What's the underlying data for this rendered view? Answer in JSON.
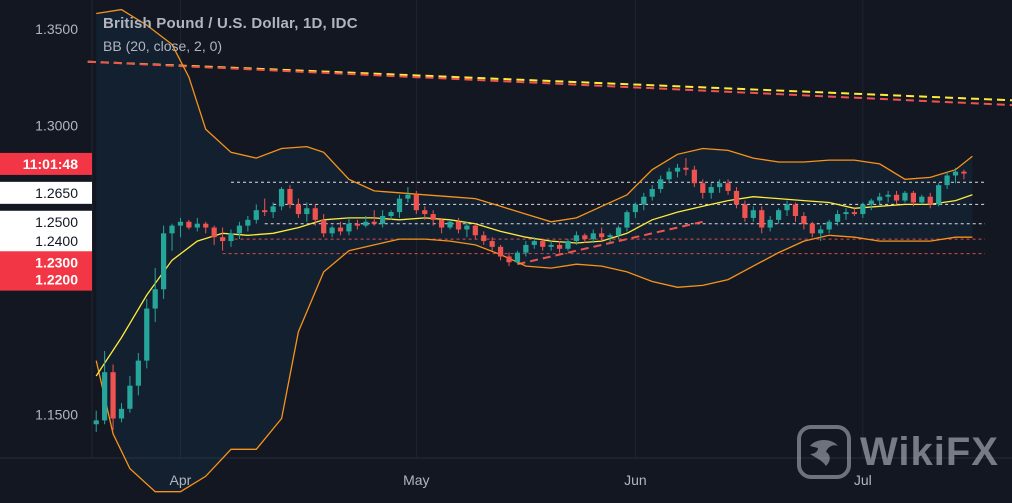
{
  "header": {
    "title": "British Pound / U.S. Dollar, 1D, IDC",
    "indicator": "BB (20, close, 2, 0)"
  },
  "watermark": {
    "text": "WikiFX"
  },
  "colors": {
    "background": "#131722",
    "up": "#26a69a",
    "down": "#ef5350",
    "bb_band": "#f7931a",
    "bb_basis": "#ffeb3b",
    "label_red": "#f23645",
    "grid": "#1f2430"
  },
  "chart_data": {
    "type": "candlestick",
    "y_axis": {
      "range": [
        1.1275,
        1.365
      ],
      "ticks": [
        "1.3500",
        "1.3000",
        "1.2650",
        "1.2500",
        "1.2400",
        "1.2300",
        "1.2200",
        "1.1500"
      ],
      "price_labels": [
        {
          "text": "11:01:48",
          "value": 1.28,
          "style": "red"
        },
        {
          "text": "1.2650",
          "value": 1.265,
          "style": "white"
        },
        {
          "text": "1.2500",
          "value": 1.25,
          "style": "white"
        },
        {
          "text": "1.2400",
          "value": 1.24,
          "style": "white"
        },
        {
          "text": "1.2300",
          "value": 1.229,
          "style": "red"
        },
        {
          "text": "1.2200",
          "value": 1.22,
          "style": "red"
        }
      ],
      "plain_ticks": [
        {
          "text": "1.3500",
          "value": 1.35
        },
        {
          "text": "1.3000",
          "value": 1.3
        },
        {
          "text": "1.1500",
          "value": 1.15
        }
      ]
    },
    "x_axis": {
      "labels": [
        {
          "text": "Apr",
          "index": 10
        },
        {
          "text": "May",
          "index": 38
        },
        {
          "text": "Jun",
          "index": 64
        },
        {
          "text": "Jul",
          "index": 91
        }
      ]
    },
    "candles": [
      [
        1.145,
        1.152,
        1.141,
        1.147
      ],
      [
        1.147,
        1.183,
        1.145,
        1.172
      ],
      [
        1.172,
        1.176,
        1.142,
        1.148
      ],
      [
        1.148,
        1.156,
        1.146,
        1.153
      ],
      [
        1.153,
        1.17,
        1.151,
        1.165
      ],
      [
        1.165,
        1.182,
        1.16,
        1.178
      ],
      [
        1.178,
        1.21,
        1.174,
        1.205
      ],
      [
        1.205,
        1.226,
        1.198,
        1.215
      ],
      [
        1.215,
        1.248,
        1.21,
        1.244
      ],
      [
        1.244,
        1.249,
        1.235,
        1.248
      ],
      [
        1.248,
        1.252,
        1.242,
        1.25
      ],
      [
        1.25,
        1.251,
        1.246,
        1.247
      ],
      [
        1.247,
        1.252,
        1.245,
        1.249
      ],
      [
        1.249,
        1.25,
        1.244,
        1.247
      ],
      [
        1.247,
        1.248,
        1.238,
        1.242
      ],
      [
        1.242,
        1.247,
        1.235,
        1.24
      ],
      [
        1.24,
        1.246,
        1.237,
        1.244
      ],
      [
        1.244,
        1.25,
        1.241,
        1.248
      ],
      [
        1.248,
        1.253,
        1.245,
        1.251
      ],
      [
        1.251,
        1.259,
        1.249,
        1.256
      ],
      [
        1.256,
        1.262,
        1.253,
        1.255
      ],
      [
        1.255,
        1.26,
        1.252,
        1.258
      ],
      [
        1.258,
        1.268,
        1.256,
        1.267
      ],
      [
        1.267,
        1.269,
        1.257,
        1.259
      ],
      [
        1.259,
        1.262,
        1.252,
        1.254
      ],
      [
        1.254,
        1.26,
        1.25,
        1.257
      ],
      [
        1.257,
        1.259,
        1.248,
        1.251
      ],
      [
        1.251,
        1.254,
        1.242,
        1.244
      ],
      [
        1.244,
        1.248,
        1.242,
        1.247
      ],
      [
        1.247,
        1.25,
        1.243,
        1.245
      ],
      [
        1.245,
        1.252,
        1.243,
        1.249
      ],
      [
        1.249,
        1.251,
        1.246,
        1.248
      ],
      [
        1.248,
        1.253,
        1.247,
        1.25
      ],
      [
        1.25,
        1.256,
        1.248,
        1.249
      ],
      [
        1.249,
        1.256,
        1.247,
        1.253
      ],
      [
        1.253,
        1.256,
        1.251,
        1.255
      ],
      [
        1.255,
        1.264,
        1.252,
        1.262
      ],
      [
        1.262,
        1.268,
        1.26,
        1.264
      ],
      [
        1.264,
        1.266,
        1.254,
        1.256
      ],
      [
        1.256,
        1.258,
        1.251,
        1.254
      ],
      [
        1.254,
        1.256,
        1.248,
        1.251
      ],
      [
        1.251,
        1.252,
        1.244,
        1.247
      ],
      [
        1.247,
        1.251,
        1.246,
        1.25
      ],
      [
        1.25,
        1.252,
        1.244,
        1.246
      ],
      [
        1.246,
        1.25,
        1.242,
        1.248
      ],
      [
        1.248,
        1.249,
        1.241,
        1.243
      ],
      [
        1.243,
        1.245,
        1.238,
        1.24
      ],
      [
        1.24,
        1.242,
        1.235,
        1.237
      ],
      [
        1.237,
        1.238,
        1.23,
        1.232
      ],
      [
        1.232,
        1.234,
        1.227,
        1.229
      ],
      [
        1.229,
        1.235,
        1.228,
        1.234
      ],
      [
        1.234,
        1.24,
        1.232,
        1.238
      ],
      [
        1.238,
        1.242,
        1.236,
        1.24
      ],
      [
        1.24,
        1.241,
        1.235,
        1.237
      ],
      [
        1.237,
        1.24,
        1.235,
        1.238
      ],
      [
        1.238,
        1.24,
        1.234,
        1.236
      ],
      [
        1.236,
        1.241,
        1.235,
        1.24
      ],
      [
        1.24,
        1.245,
        1.238,
        1.243
      ],
      [
        1.243,
        1.244,
        1.239,
        1.241
      ],
      [
        1.241,
        1.246,
        1.239,
        1.244
      ],
      [
        1.244,
        1.247,
        1.24,
        1.242
      ],
      [
        1.242,
        1.244,
        1.239,
        1.243
      ],
      [
        1.243,
        1.248,
        1.241,
        1.247
      ],
      [
        1.247,
        1.256,
        1.245,
        1.255
      ],
      [
        1.255,
        1.26,
        1.252,
        1.259
      ],
      [
        1.259,
        1.265,
        1.256,
        1.263
      ],
      [
        1.263,
        1.269,
        1.261,
        1.267
      ],
      [
        1.267,
        1.274,
        1.265,
        1.272
      ],
      [
        1.272,
        1.278,
        1.27,
        1.276
      ],
      [
        1.276,
        1.28,
        1.273,
        1.278
      ],
      [
        1.278,
        1.283,
        1.274,
        1.277
      ],
      [
        1.277,
        1.279,
        1.268,
        1.27
      ],
      [
        1.27,
        1.272,
        1.262,
        1.265
      ],
      [
        1.265,
        1.27,
        1.262,
        1.268
      ],
      [
        1.268,
        1.272,
        1.265,
        1.27
      ],
      [
        1.27,
        1.272,
        1.264,
        1.266
      ],
      [
        1.266,
        1.268,
        1.257,
        1.259
      ],
      [
        1.259,
        1.261,
        1.25,
        1.252
      ],
      [
        1.252,
        1.258,
        1.25,
        1.256
      ],
      [
        1.256,
        1.258,
        1.244,
        1.247
      ],
      [
        1.247,
        1.253,
        1.245,
        1.251
      ],
      [
        1.251,
        1.257,
        1.249,
        1.256
      ],
      [
        1.256,
        1.261,
        1.253,
        1.259
      ],
      [
        1.259,
        1.26,
        1.25,
        1.253
      ],
      [
        1.253,
        1.255,
        1.246,
        1.249
      ],
      [
        1.249,
        1.25,
        1.242,
        1.244
      ],
      [
        1.244,
        1.248,
        1.24,
        1.246
      ],
      [
        1.246,
        1.251,
        1.244,
        1.25
      ],
      [
        1.25,
        1.256,
        1.248,
        1.254
      ],
      [
        1.254,
        1.257,
        1.251,
        1.255
      ],
      [
        1.255,
        1.257,
        1.253,
        1.254
      ],
      [
        1.254,
        1.26,
        1.252,
        1.259
      ],
      [
        1.259,
        1.262,
        1.256,
        1.261
      ],
      [
        1.261,
        1.265,
        1.259,
        1.263
      ],
      [
        1.263,
        1.266,
        1.26,
        1.264
      ],
      [
        1.264,
        1.266,
        1.259,
        1.261
      ],
      [
        1.261,
        1.266,
        1.26,
        1.265
      ],
      [
        1.265,
        1.266,
        1.258,
        1.26
      ],
      [
        1.26,
        1.264,
        1.259,
        1.263
      ],
      [
        1.263,
        1.265,
        1.257,
        1.259
      ],
      [
        1.259,
        1.27,
        1.258,
        1.269
      ],
      [
        1.269,
        1.276,
        1.267,
        1.274
      ],
      [
        1.274,
        1.278,
        1.27,
        1.276
      ],
      [
        1.276,
        1.277,
        1.272,
        1.275
      ]
    ],
    "bollinger": {
      "upper": [
        [
          0,
          1.358
        ],
        [
          3,
          1.36
        ],
        [
          6,
          1.352
        ],
        [
          9,
          1.342
        ],
        [
          11,
          1.325
        ],
        [
          13,
          1.298
        ],
        [
          16,
          1.286
        ],
        [
          19,
          1.283
        ],
        [
          22,
          1.288
        ],
        [
          25,
          1.289
        ],
        [
          27,
          1.286
        ],
        [
          30,
          1.272
        ],
        [
          33,
          1.266
        ],
        [
          36,
          1.265
        ],
        [
          39,
          1.264
        ],
        [
          42,
          1.263
        ],
        [
          45,
          1.262
        ],
        [
          48,
          1.258
        ],
        [
          51,
          1.254
        ],
        [
          54,
          1.25
        ],
        [
          57,
          1.252
        ],
        [
          60,
          1.258
        ],
        [
          63,
          1.264
        ],
        [
          66,
          1.277
        ],
        [
          69,
          1.285
        ],
        [
          72,
          1.288
        ],
        [
          75,
          1.287
        ],
        [
          78,
          1.283
        ],
        [
          81,
          1.281
        ],
        [
          84,
          1.281
        ],
        [
          87,
          1.282
        ],
        [
          90,
          1.282
        ],
        [
          93,
          1.28
        ],
        [
          96,
          1.272
        ],
        [
          99,
          1.273
        ],
        [
          102,
          1.277
        ],
        [
          104,
          1.284
        ]
      ],
      "basis": [
        [
          0,
          1.17
        ],
        [
          3,
          1.19
        ],
        [
          6,
          1.212
        ],
        [
          9,
          1.23
        ],
        [
          12,
          1.24
        ],
        [
          15,
          1.244
        ],
        [
          18,
          1.243
        ],
        [
          21,
          1.244
        ],
        [
          24,
          1.247
        ],
        [
          27,
          1.251
        ],
        [
          30,
          1.252
        ],
        [
          33,
          1.252
        ],
        [
          36,
          1.251
        ],
        [
          39,
          1.252
        ],
        [
          42,
          1.251
        ],
        [
          45,
          1.249
        ],
        [
          48,
          1.245
        ],
        [
          51,
          1.242
        ],
        [
          54,
          1.24
        ],
        [
          57,
          1.239
        ],
        [
          60,
          1.24
        ],
        [
          63,
          1.244
        ],
        [
          66,
          1.251
        ],
        [
          69,
          1.255
        ],
        [
          72,
          1.258
        ],
        [
          75,
          1.261
        ],
        [
          78,
          1.263
        ],
        [
          81,
          1.262
        ],
        [
          84,
          1.261
        ],
        [
          87,
          1.26
        ],
        [
          90,
          1.257
        ],
        [
          93,
          1.258
        ],
        [
          96,
          1.259
        ],
        [
          99,
          1.259
        ],
        [
          102,
          1.261
        ],
        [
          104,
          1.264
        ]
      ],
      "lower": [
        [
          0,
          1.178
        ],
        [
          2,
          1.14
        ],
        [
          4,
          1.122
        ],
        [
          7,
          1.11
        ],
        [
          10,
          1.11
        ],
        [
          13,
          1.118
        ],
        [
          16,
          1.132
        ],
        [
          19,
          1.132
        ],
        [
          22,
          1.148
        ],
        [
          24,
          1.193
        ],
        [
          27,
          1.224
        ],
        [
          30,
          1.235
        ],
        [
          33,
          1.238
        ],
        [
          36,
          1.241
        ],
        [
          39,
          1.241
        ],
        [
          42,
          1.24
        ],
        [
          45,
          1.238
        ],
        [
          48,
          1.233
        ],
        [
          51,
          1.227
        ],
        [
          54,
          1.226
        ],
        [
          57,
          1.228
        ],
        [
          60,
          1.227
        ],
        [
          63,
          1.224
        ],
        [
          66,
          1.219
        ],
        [
          69,
          1.216
        ],
        [
          72,
          1.217
        ],
        [
          75,
          1.22
        ],
        [
          78,
          1.227
        ],
        [
          81,
          1.234
        ],
        [
          84,
          1.24
        ],
        [
          87,
          1.243
        ],
        [
          90,
          1.242
        ],
        [
          93,
          1.24
        ],
        [
          96,
          1.24
        ],
        [
          99,
          1.24
        ],
        [
          102,
          1.242
        ],
        [
          104,
          1.242
        ]
      ]
    },
    "trend_lines": [
      {
        "color": "#ffeb3b",
        "from": [
          0,
          1.333
        ],
        "to": [
          106,
          1.313
        ]
      },
      {
        "color": "#ef5350",
        "from": [
          0,
          1.333
        ],
        "to": [
          106,
          1.3105
        ]
      }
    ],
    "support_line": {
      "color": "#ef5350",
      "from": [
        50,
        1.228
      ],
      "to": [
        72,
        1.25
      ]
    },
    "horizontal_lines": [
      {
        "value": 1.2705,
        "color": "#ffffff",
        "from": 16
      },
      {
        "value": 1.259,
        "color": "#ffffff",
        "from": 21
      },
      {
        "value": 1.249,
        "color": "#ffffff",
        "from": 20
      },
      {
        "value": 1.241,
        "color": "#ef5350",
        "from": 15
      },
      {
        "value": 1.2335,
        "color": "#ef5350",
        "from": 15
      }
    ]
  }
}
